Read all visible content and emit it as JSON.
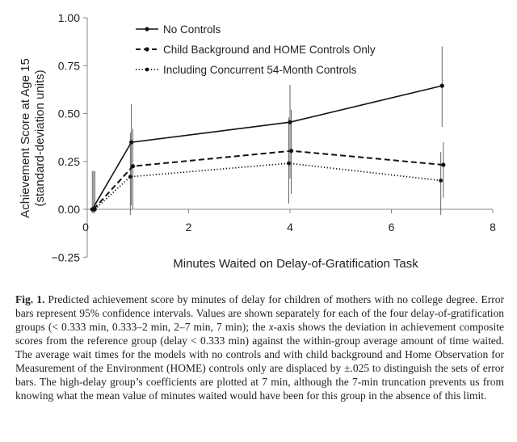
{
  "chart_data": {
    "type": "line",
    "xlabel": "Minutes Waited on Delay-of-Gratification Task",
    "ylabel_line1": "Achievement Score at Age 15",
    "ylabel_line2": "(standard-deviation units)",
    "xlim": [
      0,
      8
    ],
    "ylim": [
      -0.25,
      1.0
    ],
    "xticks": [
      {
        "v": 2,
        "label": "2"
      },
      {
        "v": 4,
        "label": "4"
      },
      {
        "v": 6,
        "label": "6"
      },
      {
        "v": 8,
        "label": "8"
      }
    ],
    "x_origin_label": "0",
    "yticks": [
      {
        "v": 1.0,
        "label": "1.00"
      },
      {
        "v": 0.75,
        "label": "0.75"
      },
      {
        "v": 0.5,
        "label": "0.50"
      },
      {
        "v": 0.25,
        "label": "0.25"
      },
      {
        "v": 0.0,
        "label": "0.00"
      },
      {
        "v": -0.25,
        "label": "−0.25"
      }
    ],
    "legend_position": "top-right",
    "series": [
      {
        "name": "No Controls",
        "style": "solid",
        "marker_size": 2.6,
        "points": [
          {
            "x": 0.1,
            "y": 0.0,
            "lo": -0.02,
            "hi": 0.2
          },
          {
            "x": 0.87,
            "y": 0.35,
            "lo": 0.02,
            "hi": 0.55
          },
          {
            "x": 4.0,
            "y": 0.455,
            "lo": 0.16,
            "hi": 0.65
          },
          {
            "x": 7.0,
            "y": 0.645,
            "lo": 0.43,
            "hi": 0.85
          }
        ]
      },
      {
        "name": "Child Background and HOME Controls Only",
        "style": "dashed",
        "marker_size": 2.6,
        "points": [
          {
            "x": 0.125,
            "y": 0.0,
            "lo": -0.02,
            "hi": 0.2
          },
          {
            "x": 0.9,
            "y": 0.225,
            "lo": 0.0,
            "hi": 0.42
          },
          {
            "x": 4.025,
            "y": 0.305,
            "lo": 0.08,
            "hi": 0.52
          },
          {
            "x": 7.025,
            "y": 0.232,
            "lo": 0.06,
            "hi": 0.35
          }
        ]
      },
      {
        "name": "Including Concurrent 54-Month Controls",
        "style": "dotted",
        "marker_size": 2.4,
        "points": [
          {
            "x": 0.15,
            "y": 0.0,
            "lo": -0.02,
            "hi": 0.2
          },
          {
            "x": 0.85,
            "y": 0.17,
            "lo": -0.03,
            "hi": 0.4
          },
          {
            "x": 3.975,
            "y": 0.24,
            "lo": 0.03,
            "hi": 0.48
          },
          {
            "x": 6.975,
            "y": 0.15,
            "lo": -0.03,
            "hi": 0.3
          }
        ]
      }
    ]
  },
  "caption": {
    "label": "Fig. 1.",
    "segments": [
      {
        "t": "Predicted achievement score by minutes of delay for children of mothers with no college degree. Error bars represent 95% confidence intervals. Values are shown separately for each of the four delay-of-gratification groups (< 0.333 min, 0.333–2 min, 2–7 min, 7 min); the "
      },
      {
        "t": "x",
        "i": true
      },
      {
        "t": "-axis shows the deviation in achievement composite scores from the reference group (delay < 0.333 min) against the within-group average amount of time waited. The average wait times for the models with no controls and with child background and Home Observation for Measurement of the Environment (HOME) controls only are displaced by ±.025 to distinguish the sets of error bars. The high-delay group’s coefficients are plotted at 7 min, although the 7-min truncation prevents us from knowing what the mean value of minutes waited would have been for this group in the absence of this limit."
      }
    ]
  }
}
